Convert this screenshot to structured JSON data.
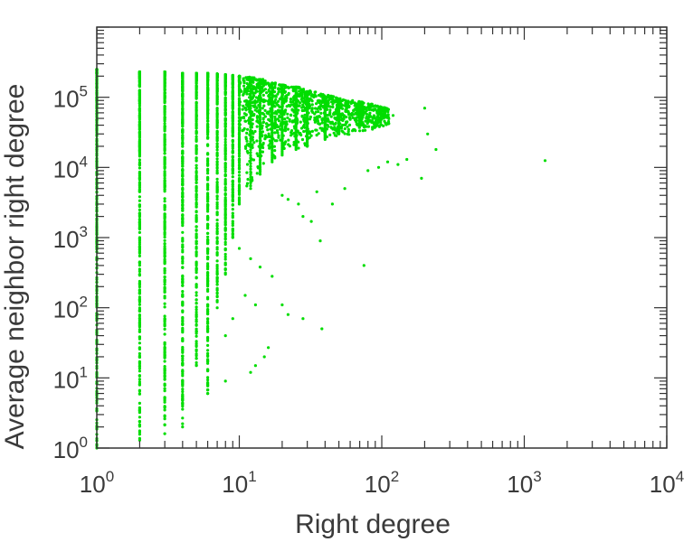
{
  "chart_data": {
    "type": "scatter",
    "title": "",
    "xlabel": "Right degree",
    "ylabel": "Average neighbor right degree",
    "xscale": "log",
    "yscale": "log",
    "xlim": [
      1,
      10000
    ],
    "ylim": [
      1,
      1000000
    ],
    "grid": false,
    "legend": "none",
    "marker_color": "#00dd00",
    "x_ticks": [
      {
        "base": "10",
        "exp": "0"
      },
      {
        "base": "10",
        "exp": "1"
      },
      {
        "base": "10",
        "exp": "2"
      },
      {
        "base": "10",
        "exp": "3"
      },
      {
        "base": "10",
        "exp": "4"
      }
    ],
    "y_ticks": [
      {
        "base": "10",
        "exp": "0"
      },
      {
        "base": "10",
        "exp": "1"
      },
      {
        "base": "10",
        "exp": "2"
      },
      {
        "base": "10",
        "exp": "3"
      },
      {
        "base": "10",
        "exp": "4"
      },
      {
        "base": "10",
        "exp": "5"
      }
    ],
    "column_ranges": [
      {
        "x": 1,
        "ymin": 1,
        "ymax": 250000
      },
      {
        "x": 2,
        "ymin": 1.3,
        "ymax": 230000
      },
      {
        "x": 3,
        "ymin": 1.6,
        "ymax": 230000
      },
      {
        "x": 4,
        "ymin": 2,
        "ymax": 220000
      },
      {
        "x": 5,
        "ymin": 15,
        "ymax": 220000
      },
      {
        "x": 6,
        "ymin": 6,
        "ymax": 220000
      },
      {
        "x": 7,
        "ymin": 100,
        "ymax": 215000
      },
      {
        "x": 8,
        "ymin": 300,
        "ymax": 210000
      },
      {
        "x": 9,
        "ymin": 1000,
        "ymax": 205000
      },
      {
        "x": 10,
        "ymin": 3000,
        "ymax": 200000
      },
      {
        "x": 12,
        "ymin": 5000,
        "ymax": 190000
      },
      {
        "x": 14,
        "ymin": 8000,
        "ymax": 180000
      },
      {
        "x": 17,
        "ymin": 12000,
        "ymax": 160000
      },
      {
        "x": 20,
        "ymin": 15000,
        "ymax": 150000
      },
      {
        "x": 25,
        "ymin": 18000,
        "ymax": 140000
      },
      {
        "x": 30,
        "ymin": 20000,
        "ymax": 120000
      },
      {
        "x": 40,
        "ymin": 25000,
        "ymax": 100000
      },
      {
        "x": 50,
        "ymin": 30000,
        "ymax": 90000
      },
      {
        "x": 70,
        "ymin": 40000,
        "ymax": 75000
      }
    ],
    "sparse_points": [
      {
        "x": 6,
        "y": 6
      },
      {
        "x": 6,
        "y": 8
      },
      {
        "x": 8,
        "y": 9
      },
      {
        "x": 12,
        "y": 12
      },
      {
        "x": 13,
        "y": 15
      },
      {
        "x": 16,
        "y": 27
      },
      {
        "x": 15,
        "y": 20
      },
      {
        "x": 20,
        "y": 110
      },
      {
        "x": 22,
        "y": 80
      },
      {
        "x": 28,
        "y": 70
      },
      {
        "x": 38,
        "y": 50
      },
      {
        "x": 13,
        "y": 110
      },
      {
        "x": 11,
        "y": 150
      },
      {
        "x": 9,
        "y": 70
      },
      {
        "x": 8,
        "y": 40
      },
      {
        "x": 17,
        "y": 280
      },
      {
        "x": 14,
        "y": 380
      },
      {
        "x": 12,
        "y": 500
      },
      {
        "x": 10,
        "y": 700
      },
      {
        "x": 75,
        "y": 400
      },
      {
        "x": 37,
        "y": 900
      },
      {
        "x": 32,
        "y": 1700
      },
      {
        "x": 28,
        "y": 2000
      },
      {
        "x": 26,
        "y": 3000
      },
      {
        "x": 22,
        "y": 3500
      },
      {
        "x": 20,
        "y": 4000
      },
      {
        "x": 45,
        "y": 3000
      },
      {
        "x": 55,
        "y": 5000
      },
      {
        "x": 35,
        "y": 4500
      },
      {
        "x": 80,
        "y": 9000
      },
      {
        "x": 95,
        "y": 10000
      },
      {
        "x": 110,
        "y": 12000
      },
      {
        "x": 130,
        "y": 11000
      },
      {
        "x": 150,
        "y": 13000
      },
      {
        "x": 190,
        "y": 7000
      },
      {
        "x": 200,
        "y": 70000
      },
      {
        "x": 210,
        "y": 30000
      },
      {
        "x": 240,
        "y": 18000
      },
      {
        "x": 120,
        "y": 55000
      },
      {
        "x": 105,
        "y": 60000
      },
      {
        "x": 90,
        "y": 50000
      },
      {
        "x": 1400,
        "y": 12500
      }
    ]
  }
}
